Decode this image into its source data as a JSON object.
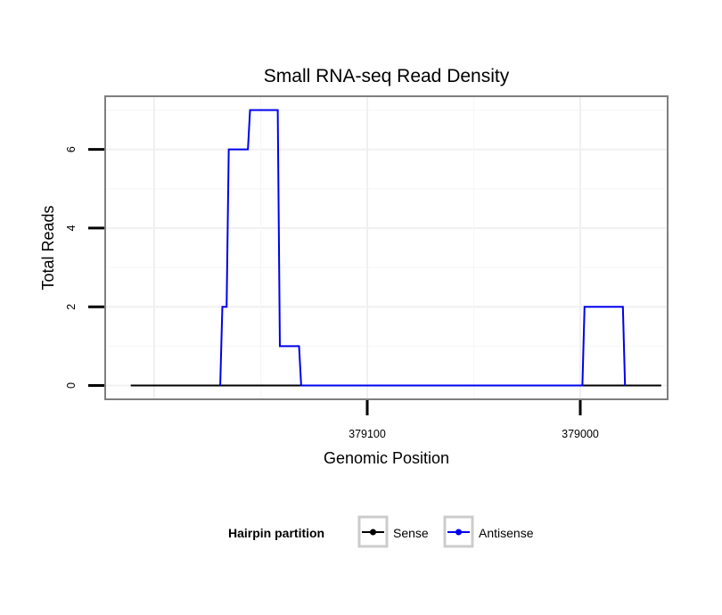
{
  "chart_data": {
    "type": "line",
    "title": "Small RNA-seq Read Density",
    "xlabel": "Genomic Position",
    "ylabel": "Total Reads",
    "x_reversed": true,
    "xlim": [
      379223,
      378959
    ],
    "ylim": [
      -0.35,
      7.35
    ],
    "x_ticks": [
      379100,
      379000
    ],
    "x_tick_labels": [
      "379100",
      "379000"
    ],
    "y_ticks": [
      0,
      2,
      4,
      6
    ],
    "y_tick_labels": [
      "0",
      "2",
      "4",
      "6"
    ],
    "grid": true,
    "legend": {
      "title": "Hairpin partition",
      "position": "bottom",
      "entries": [
        {
          "label": "Sense",
          "color": "#000000"
        },
        {
          "label": "Antisense",
          "color": "#0000ee"
        }
      ]
    },
    "series": [
      {
        "name": "Sense",
        "color": "#000000",
        "x": [
          379211,
          378962
        ],
        "y": [
          0,
          0
        ]
      },
      {
        "name": "Antisense",
        "color": "#0000ee",
        "x": [
          379169,
          379168,
          379167,
          379166,
          379165,
          379164,
          379163,
          379156,
          379155,
          379154,
          379153,
          379142,
          379141,
          379140,
          379132,
          379131,
          378999,
          378998,
          378980,
          378979
        ],
        "y": [
          0,
          2,
          2,
          2,
          6,
          6,
          6,
          6,
          7,
          7,
          7,
          7,
          1,
          1,
          1,
          0,
          0,
          2,
          2,
          0
        ]
      }
    ]
  }
}
